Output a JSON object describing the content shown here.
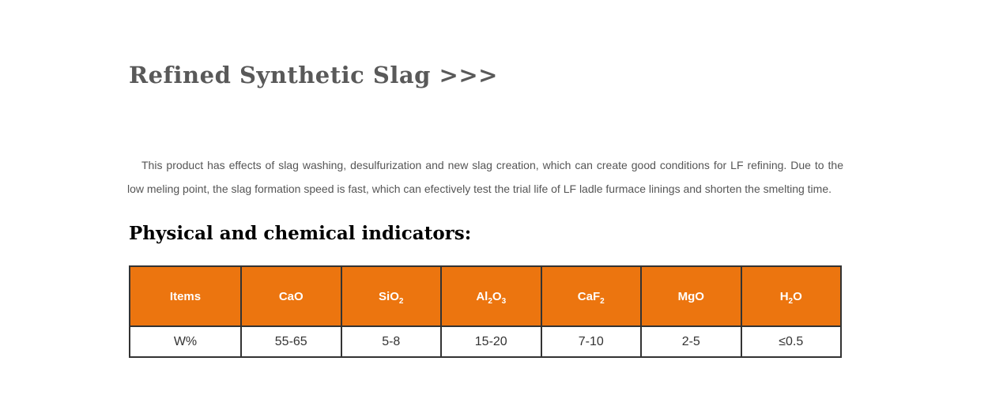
{
  "page": {
    "title": "Refined Synthetic Slag >>>",
    "intro": "This product has effects of slag washing, desulfurization and new slag creation, which can create good conditions for LF refining. Due to the low meling point, the slag formation speed is fast, which can efectively test the trial life of LF ladle furmace linings and shorten the smelting time.",
    "section_heading": "Physical and chemical indicators:"
  },
  "table": {
    "columns": [
      {
        "segments": [
          {
            "text": "Items"
          }
        ]
      },
      {
        "segments": [
          {
            "text": "CaO"
          }
        ]
      },
      {
        "segments": [
          {
            "text": "SiO"
          },
          {
            "text": "2",
            "sub": true
          }
        ]
      },
      {
        "segments": [
          {
            "text": "Al"
          },
          {
            "text": "2",
            "sub": true
          },
          {
            "text": "O"
          },
          {
            "text": "3",
            "sub": true
          }
        ]
      },
      {
        "segments": [
          {
            "text": "CaF"
          },
          {
            "text": "2",
            "sub": true
          }
        ]
      },
      {
        "segments": [
          {
            "text": "MgO"
          }
        ]
      },
      {
        "segments": [
          {
            "text": "H"
          },
          {
            "text": "2",
            "sub": true
          },
          {
            "text": "O"
          }
        ]
      }
    ],
    "rows": [
      [
        "W%",
        "55-65",
        "5-8",
        "15-20",
        "7-10",
        "2-5",
        "≤0.5"
      ]
    ]
  },
  "colors": {
    "accent_orange": "#EC750F",
    "table_border": "#333333",
    "header_text": "#FFFFFF",
    "title_gray": "#595959",
    "body_text_gray": "#555555",
    "heading_black": "#000000"
  }
}
